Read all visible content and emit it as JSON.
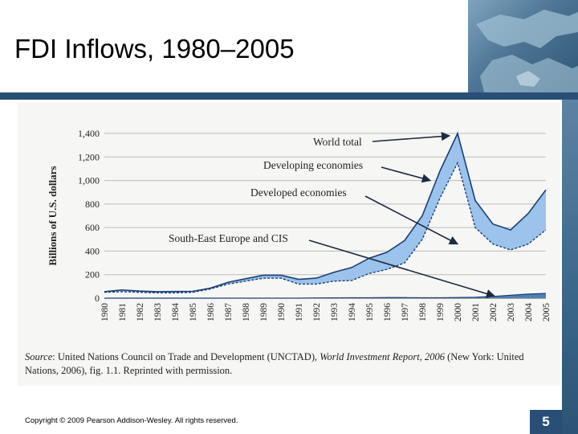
{
  "slide": {
    "title": "FDI Inflows, 1980–2005",
    "copyright": "Copyright © 2009 Pearson Addison-Wesley. All rights reserved.",
    "page_number": "5",
    "source_label": "Source",
    "source_text_1": ": United Nations Council on Trade and Development (UNCTAD), ",
    "source_italic": "World Investment Report, 2006",
    "source_text_2": " (New York: United Nations, 2006), fig. 1.1. Reprinted with permission."
  },
  "colors": {
    "header_bar": "#294f77",
    "developed_fill": "#9cc3ec",
    "developing_fill": "#4f7fb8",
    "line": "#1c3f73",
    "gridline": "#bbbbbb"
  },
  "chart_data": {
    "type": "area",
    "ylabel": "Billions of U.S. dollars",
    "xlabel": "",
    "ylim": [
      0,
      1400
    ],
    "yticks": [
      0,
      200,
      400,
      600,
      800,
      1000,
      1200,
      1400
    ],
    "ytick_labels": [
      "0",
      "200",
      "400",
      "600",
      "800",
      "1,000",
      "1,200",
      "1,400"
    ],
    "x": [
      "1980",
      "1981",
      "1982",
      "1983",
      "1984",
      "1985",
      "1986",
      "1987",
      "1988",
      "1989",
      "1990",
      "1991",
      "1992",
      "1993",
      "1994",
      "1995",
      "1996",
      "1997",
      "1998",
      "1999",
      "2000",
      "2001",
      "2002",
      "2003",
      "2004",
      "2005"
    ],
    "grid": true,
    "series": [
      {
        "name": "World total",
        "values": [
          55,
          70,
          60,
          55,
          57,
          58,
          85,
          135,
          165,
          195,
          195,
          160,
          170,
          220,
          260,
          340,
          390,
          490,
          700,
          1080,
          1400,
          830,
          630,
          580,
          720,
          920
        ]
      },
      {
        "name": "Developed economies",
        "values": [
          50,
          55,
          50,
          45,
          45,
          50,
          78,
          120,
          145,
          170,
          170,
          120,
          120,
          145,
          150,
          210,
          245,
          300,
          500,
          850,
          1150,
          600,
          460,
          410,
          460,
          580
        ]
      },
      {
        "name": "Developing economies",
        "values": [
          5,
          15,
          10,
          10,
          12,
          8,
          7,
          15,
          20,
          25,
          25,
          40,
          50,
          75,
          110,
          130,
          145,
          190,
          200,
          230,
          250,
          230,
          170,
          170,
          260,
          340
        ]
      },
      {
        "name": "South-East Europe and CIS",
        "values": [
          0,
          0,
          0,
          0,
          0,
          0,
          0,
          0,
          0,
          0,
          0,
          0,
          2,
          3,
          4,
          4,
          5,
          5,
          4,
          4,
          5,
          8,
          15,
          25,
          35,
          40
        ]
      }
    ],
    "annotations": [
      "World total",
      "Developing economies",
      "Developed economies",
      "South-East Europe and CIS"
    ]
  }
}
